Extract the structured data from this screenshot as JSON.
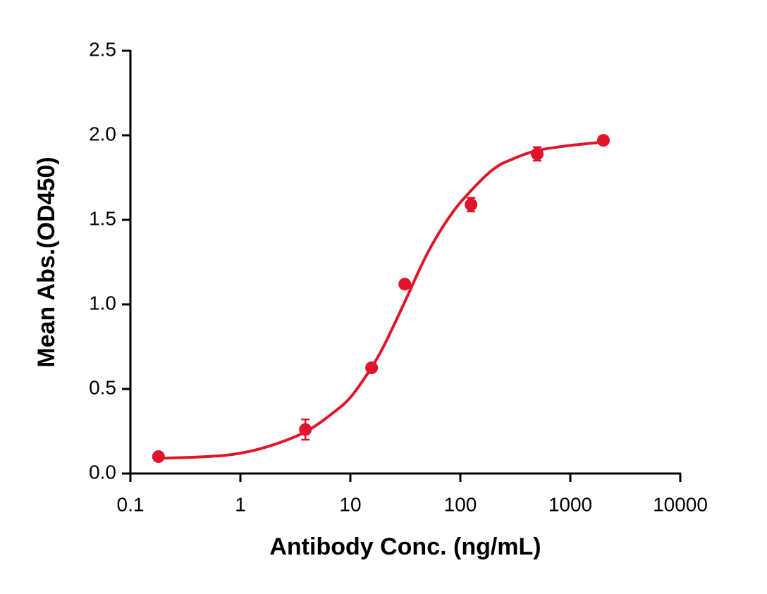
{
  "chart_data": {
    "type": "scatter",
    "x_label": "Antibody Conc. (ng/mL)",
    "y_label": "Mean Abs.(OD450)",
    "x": [
      0.18,
      3.9,
      15.6,
      31.25,
      125,
      500,
      2000
    ],
    "values": [
      0.1,
      0.26,
      0.625,
      1.12,
      1.59,
      1.89,
      1.97
    ],
    "errors": [
      0.01,
      0.06,
      0.01,
      0.01,
      0.04,
      0.04,
      0.01
    ],
    "fit": {
      "x": [
        0.18,
        0.5,
        1,
        2,
        4,
        7,
        10,
        15,
        20,
        30,
        50,
        80,
        120,
        200,
        300,
        500,
        1000,
        2000
      ],
      "values": [
        0.09,
        0.1,
        0.12,
        0.17,
        0.25,
        0.36,
        0.45,
        0.61,
        0.75,
        0.99,
        1.3,
        1.52,
        1.66,
        1.8,
        1.86,
        1.91,
        1.94,
        1.96
      ]
    },
    "color": "#e0142a",
    "xscale": "log",
    "xlim": [
      0.1,
      10000
    ],
    "xticks": [
      0.1,
      1,
      10,
      100,
      1000,
      10000
    ],
    "ylim": [
      0,
      2.5
    ],
    "yticks": [
      {
        "value": 0,
        "label": "0.0"
      },
      0.5,
      {
        "value": 1,
        "label": "1.0"
      },
      1.5,
      {
        "value": 2,
        "label": "2.0"
      },
      2.5
    ]
  }
}
